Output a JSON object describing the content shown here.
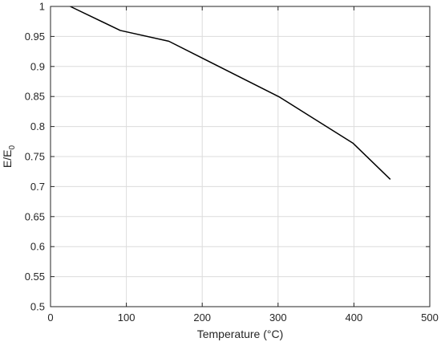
{
  "chart_data": {
    "type": "line",
    "xlabel": "Temperature (°C)",
    "ylabel": {
      "main": "E/E",
      "subscript": "0"
    },
    "xlim": [
      0,
      500
    ],
    "ylim": [
      0.5,
      1.0
    ],
    "xticks": [
      0,
      100,
      200,
      300,
      400,
      500
    ],
    "xtick_labels": [
      "0",
      "100",
      "200",
      "300",
      "400",
      "500"
    ],
    "yticks": [
      0.5,
      0.55,
      0.6,
      0.65,
      0.7,
      0.75,
      0.8,
      0.85,
      0.9,
      0.95,
      1.0
    ],
    "ytick_labels": [
      "0.5",
      "0.55",
      "0.6",
      "0.65",
      "0.7",
      "0.75",
      "0.8",
      "0.85",
      "0.9",
      "0.95",
      "1"
    ],
    "grid": true,
    "series": [
      {
        "color": "#000000",
        "x": [
          26,
          92,
          156,
          302,
          399,
          448
        ],
        "y": [
          1.0,
          0.96,
          0.942,
          0.849,
          0.772,
          0.712
        ]
      }
    ]
  }
}
